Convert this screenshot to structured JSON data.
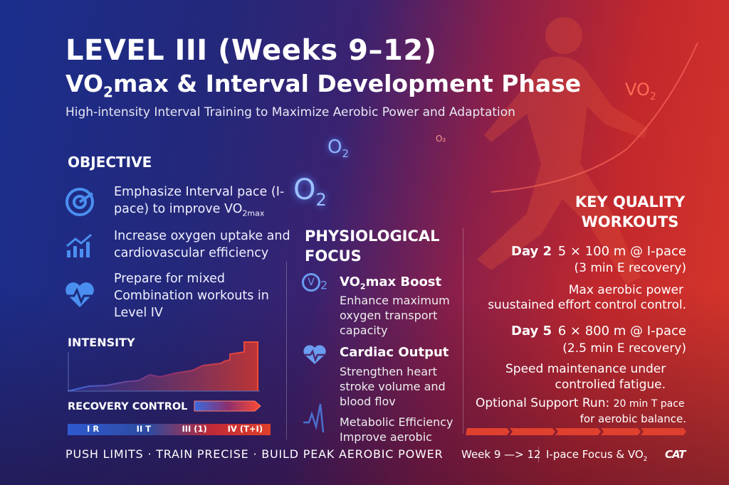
{
  "header": {
    "title": "LEVEL III (Weeks 9–12)",
    "subtitle_pre": "VO",
    "subtitle_sub": "2",
    "subtitle_post": "max & Interval Development Phase",
    "tagline": "High-intensity Interval Training to Maximize Aerobic Power and Adaptation"
  },
  "decor": {
    "o2_large": "O",
    "o2_small": "O",
    "sub2": "2",
    "vo2_label": "VO",
    "o2_tiny": "O₂"
  },
  "objective": {
    "title": "OBJECTIVE",
    "items": [
      {
        "icon": "target-icon",
        "text_pre": "Emphasize Interval pace (I-pace) to improve VO",
        "text_sub": "2max"
      },
      {
        "icon": "bar-chart-up-icon",
        "text": "Increase oxygen uptake and cardiovascular efficiency"
      },
      {
        "icon": "heart-pulse-icon",
        "text": "Prepare for mixed Combination workouts in Level IV"
      }
    ]
  },
  "intensity": {
    "title": "INTENSITY",
    "recovery_label": "RECOVERY CONTROL",
    "levels": [
      "I R",
      "II T",
      "III (1)",
      "IV (T+I)"
    ]
  },
  "physiological": {
    "title_line1": "PHYSIOLOGICAL",
    "title_line2": "FOCUS",
    "items": [
      {
        "icon": "vo2-icon",
        "title_pre": "VO",
        "title_sub": "2",
        "title_post": "max Boost",
        "desc": "Enhance maximum oxygen transport capacity"
      },
      {
        "icon": "heart-pulse-icon",
        "title": "Cardiac Output",
        "desc": "Strengthen heart stroke volume and blood flov"
      },
      {
        "icon": "pulse-wave-icon",
        "title": "Metabolic Efficiency",
        "desc": "Improve aerobic"
      }
    ]
  },
  "workouts": {
    "title_line1": "KEY QUALITY",
    "title_line2": "WORKOUTS",
    "day2": {
      "day": "Day 2",
      "set": "5 × 100 m @ I-pace",
      "recovery": "(3 min E recovery)",
      "note1": "Max aerobic power",
      "note2": "suustained effort control control."
    },
    "day5": {
      "day": "Day 5",
      "set": "6 × 800 m @ I-pace",
      "recovery": "(2.5 min E recovery)",
      "note1": "Speed maintenance under",
      "note2": "controlied fatigue."
    },
    "optional": {
      "label": "Optional Support Run:",
      "detail": "20 min T pace",
      "note": "for aerobic balance."
    }
  },
  "footer": {
    "slogan": "PUSH LIMITS · TRAIN PRECISE · BUILD PEAK AEROBIC POWER",
    "weeks": "Week 9 —> 12",
    "focus_pre": "I-pace Focus & VO",
    "focus_sub": "2",
    "logo": "CAT"
  },
  "colors": {
    "blue": "#1a2e8c",
    "red": "#d8372a",
    "icon_blue": "#4a8ff0"
  }
}
